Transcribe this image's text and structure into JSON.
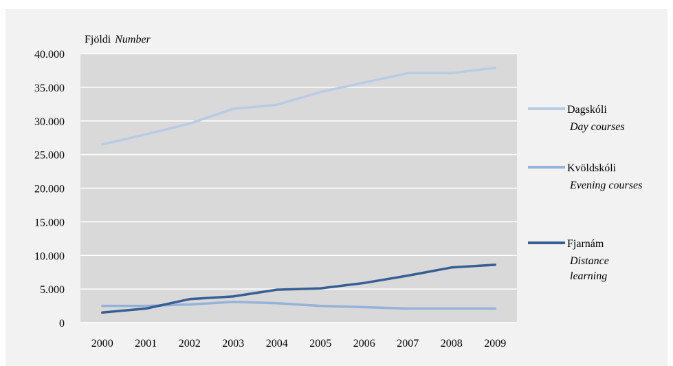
{
  "chart_data": {
    "type": "line",
    "ylabel": "Fjöldi",
    "ylabel_en": "Number",
    "ylim": [
      0,
      40000
    ],
    "y_ticks": [
      0,
      5000,
      10000,
      15000,
      20000,
      25000,
      30000,
      35000,
      40000
    ],
    "y_tick_labels": [
      "0",
      "5.000",
      "10.000",
      "15.000",
      "20.000",
      "25.000",
      "30.000",
      "35.000",
      "40.000"
    ],
    "categories": [
      "2000",
      "2001",
      "2002",
      "2003",
      "2004",
      "2005",
      "2006",
      "2007",
      "2008",
      "2009"
    ],
    "grid": true,
    "legend_position": "right",
    "series": [
      {
        "name": "Dagskóli",
        "name_en": "Day courses",
        "color": "#b8cce4",
        "values": [
          26500,
          28000,
          29600,
          31800,
          32400,
          34300,
          35700,
          37100,
          37100,
          37900
        ]
      },
      {
        "name": "Kvöldskóli",
        "name_en": "Evening courses",
        "color": "#95b3d7",
        "values": [
          2500,
          2500,
          2700,
          3100,
          2900,
          2500,
          2300,
          2100,
          2100,
          2100
        ]
      },
      {
        "name": "Fjarnám",
        "name_en": "Distance learning",
        "name_en_lines": [
          "Distance",
          "learning"
        ],
        "color": "#366092",
        "values": [
          1500,
          2100,
          3500,
          3900,
          4900,
          5100,
          5900,
          7000,
          8200,
          8600
        ]
      }
    ]
  }
}
